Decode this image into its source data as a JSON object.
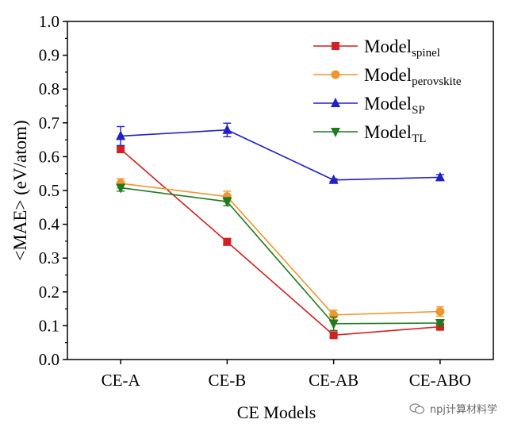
{
  "chart_data": {
    "type": "line",
    "title": "",
    "xlabel": "CE Models",
    "ylabel": "<MAE> (eV/atom)",
    "categories": [
      "CE-A",
      "CE-B",
      "CE-AB",
      "CE-ABO"
    ],
    "ylim": [
      0.0,
      1.0
    ],
    "yticks": [
      "0.0",
      "0.1",
      "0.2",
      "0.3",
      "0.4",
      "0.5",
      "0.6",
      "0.7",
      "0.8",
      "0.9",
      "1.0"
    ],
    "grid": false,
    "legend_position": "top-right",
    "series": [
      {
        "name": "Model",
        "sub": "spinel",
        "color": "#d42020",
        "marker": "square",
        "values": [
          0.622,
          0.348,
          0.072,
          0.097
        ],
        "errors": [
          0.008,
          0.01,
          0.006,
          0.008
        ]
      },
      {
        "name": "Model",
        "sub": "perovskite",
        "color": "#f0962e",
        "marker": "circle",
        "values": [
          0.521,
          0.482,
          0.132,
          0.142
        ],
        "errors": [
          0.014,
          0.016,
          0.014,
          0.014
        ]
      },
      {
        "name": "Model",
        "sub": "SP",
        "color": "#2020c8",
        "marker": "triangle-up",
        "values": [
          0.661,
          0.679,
          0.531,
          0.539
        ],
        "errors": [
          0.028,
          0.02,
          0.004,
          0.008
        ]
      },
      {
        "name": "Model",
        "sub": "TL",
        "color": "#207a20",
        "marker": "triangle-down",
        "values": [
          0.508,
          0.467,
          0.106,
          0.108
        ],
        "errors": [
          0.01,
          0.012,
          0.02,
          0.006
        ]
      }
    ]
  },
  "watermark": {
    "text": "npj计算材料学"
  }
}
